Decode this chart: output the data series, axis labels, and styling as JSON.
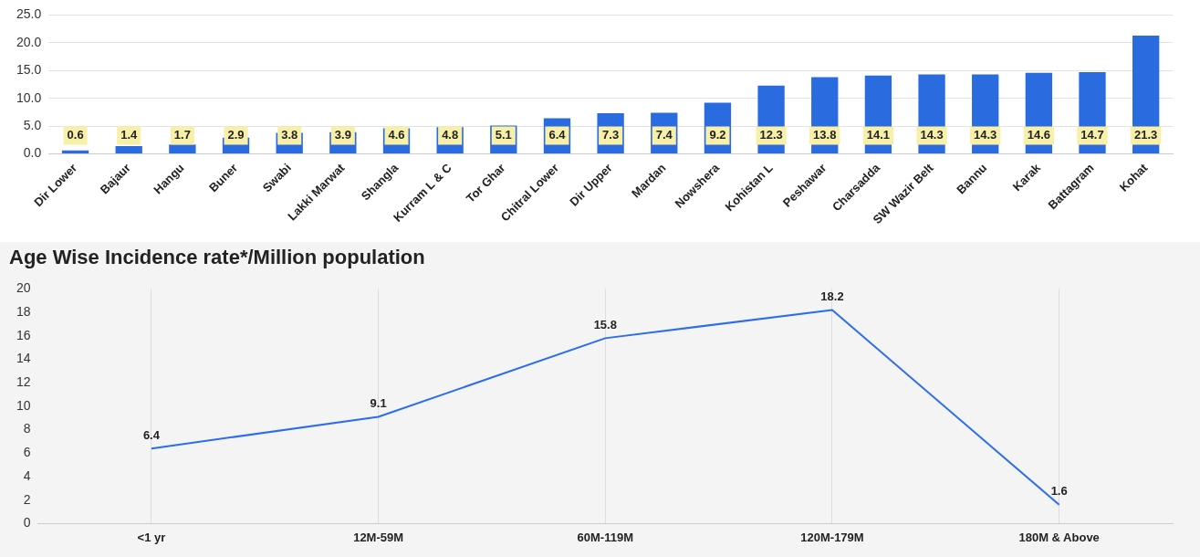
{
  "chart_data": [
    {
      "type": "bar",
      "categories": [
        "Dir Lower",
        "Bajaur",
        "Hangu",
        "Buner",
        "Swabi",
        "Lakki Marwat",
        "Shangla",
        "Kurram L & C",
        "Tor Ghar",
        "Chitral Lower",
        "Dir Upper",
        "Mardan",
        "Nowshera",
        "Kohistan L",
        "Peshawar",
        "Charsadda",
        "SW Wazir Belt",
        "Bannu",
        "Karak",
        "Battagram",
        "Kohat"
      ],
      "values": [
        0.6,
        1.4,
        1.7,
        2.9,
        3.8,
        3.9,
        4.6,
        4.8,
        5.1,
        6.4,
        7.3,
        7.4,
        9.2,
        12.3,
        13.8,
        14.1,
        14.3,
        14.3,
        14.6,
        14.7,
        21.3
      ],
      "color": "#2a6be0",
      "ylim": [
        0,
        25
      ],
      "yticks": [
        {
          "value": 0,
          "label": "0.0"
        },
        {
          "value": 5,
          "label": "5.0"
        },
        {
          "value": 10,
          "label": "10.0"
        },
        {
          "value": 15,
          "label": "15.0"
        },
        {
          "value": 20,
          "label": "20.0"
        },
        {
          "value": 25,
          "label": "25.0"
        }
      ],
      "grid": "y",
      "data_labels": true
    },
    {
      "type": "line",
      "title": "Age Wise Incidence rate*/Million population",
      "categories": [
        "<1 yr",
        "12M-59M",
        "60M-119M",
        "120M-179M",
        "180M & Above"
      ],
      "values": [
        6.4,
        9.1,
        15.8,
        18.2,
        1.6
      ],
      "color": "#2b6cf0",
      "marker": "none",
      "ylim": [
        0,
        20
      ],
      "yticks": [
        0,
        2,
        4,
        6,
        8,
        10,
        12,
        14,
        16,
        18,
        20
      ],
      "grid": "x",
      "data_labels": true
    }
  ]
}
